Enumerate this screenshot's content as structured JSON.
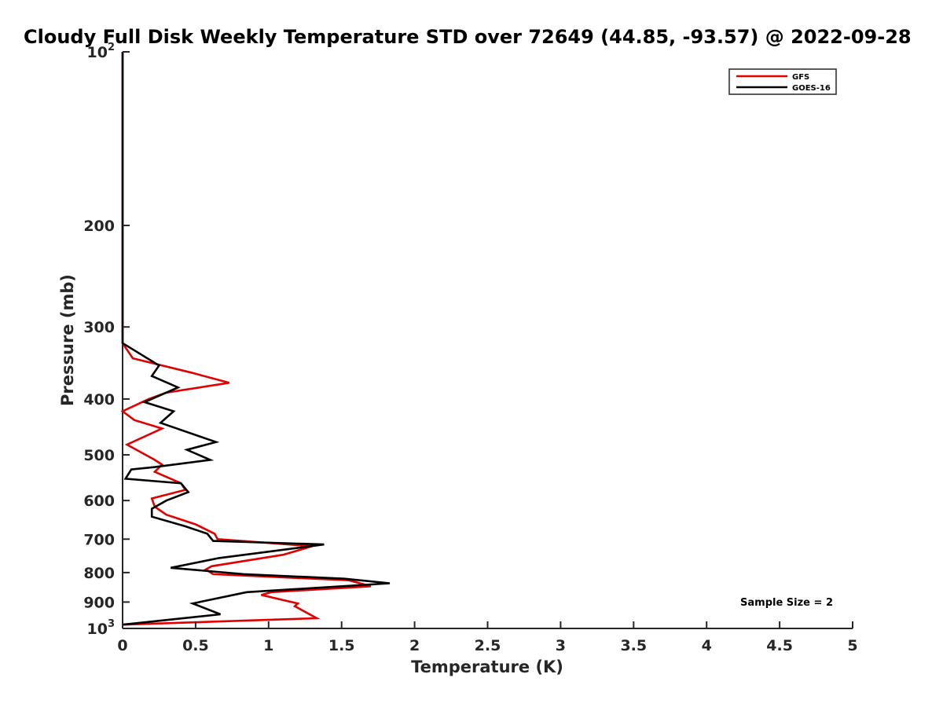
{
  "chart_data": {
    "type": "line",
    "title": "Cloudy Full Disk Weekly Temperature STD over 72649 (44.85, -93.57) @ 2022-09-28",
    "xlabel": "Temperature (K)",
    "ylabel": "Pressure (mb)",
    "xlim": [
      0,
      5
    ],
    "ylim": [
      100,
      1000
    ],
    "y_scale": "log",
    "y_reversed": true,
    "grid": false,
    "legend_position": "top-right",
    "x_ticks": [
      "0",
      "0.5",
      "1",
      "1.5",
      "2",
      "2.5",
      "3",
      "3.5",
      "4",
      "4.5",
      "5"
    ],
    "y_ticks": [
      {
        "value": 100,
        "label": "10",
        "sup": "2"
      },
      {
        "value": 200,
        "label": "200",
        "sup": ""
      },
      {
        "value": 300,
        "label": "300",
        "sup": ""
      },
      {
        "value": 400,
        "label": "400",
        "sup": ""
      },
      {
        "value": 500,
        "label": "500",
        "sup": ""
      },
      {
        "value": 600,
        "label": "600",
        "sup": ""
      },
      {
        "value": 700,
        "label": "700",
        "sup": ""
      },
      {
        "value": 800,
        "label": "800",
        "sup": ""
      },
      {
        "value": 900,
        "label": "900",
        "sup": ""
      },
      {
        "value": 1000,
        "label": "10",
        "sup": "3"
      }
    ],
    "annotation": "Sample Size = 2",
    "series": [
      {
        "name": "GFS",
        "color": "#e00000",
        "points": [
          [
            0,
            100
          ],
          [
            0,
            320
          ],
          [
            0.07,
            340
          ],
          [
            0.47,
            360
          ],
          [
            0.73,
            375
          ],
          [
            0.3,
            390
          ],
          [
            0.18,
            400
          ],
          [
            0.0,
            420
          ],
          [
            0.08,
            435
          ],
          [
            0.27,
            450
          ],
          [
            0.03,
            480
          ],
          [
            0.22,
            510
          ],
          [
            0.27,
            520
          ],
          [
            0.22,
            535
          ],
          [
            0.4,
            560
          ],
          [
            0.43,
            575
          ],
          [
            0.2,
            595
          ],
          [
            0.22,
            615
          ],
          [
            0.3,
            635
          ],
          [
            0.5,
            660
          ],
          [
            0.63,
            685
          ],
          [
            0.65,
            700
          ],
          [
            1.3,
            720
          ],
          [
            1.1,
            745
          ],
          [
            0.61,
            780
          ],
          [
            0.57,
            790
          ],
          [
            0.62,
            805
          ],
          [
            1.55,
            825
          ],
          [
            1.7,
            845
          ],
          [
            1.02,
            865
          ],
          [
            0.95,
            875
          ],
          [
            1.2,
            905
          ],
          [
            1.18,
            915
          ],
          [
            1.33,
            960
          ],
          [
            0,
            985
          ]
        ]
      },
      {
        "name": "GOES-16",
        "color": "#000000",
        "points": [
          [
            0,
            100
          ],
          [
            0,
            320
          ],
          [
            0.25,
            350
          ],
          [
            0.2,
            365
          ],
          [
            0.38,
            382
          ],
          [
            0.15,
            405
          ],
          [
            0.35,
            420
          ],
          [
            0.26,
            440
          ],
          [
            0.64,
            475
          ],
          [
            0.44,
            490
          ],
          [
            0.6,
            510
          ],
          [
            0.22,
            525
          ],
          [
            0.06,
            530
          ],
          [
            0.02,
            550
          ],
          [
            0.4,
            560
          ],
          [
            0.45,
            580
          ],
          [
            0.3,
            600
          ],
          [
            0.2,
            620
          ],
          [
            0.2,
            640
          ],
          [
            0.43,
            665
          ],
          [
            0.58,
            685
          ],
          [
            0.62,
            705
          ],
          [
            1.38,
            715
          ],
          [
            0.66,
            755
          ],
          [
            0.33,
            785
          ],
          [
            0.83,
            805
          ],
          [
            1.52,
            820
          ],
          [
            1.83,
            835
          ],
          [
            0.85,
            865
          ],
          [
            0.48,
            905
          ],
          [
            0.67,
            945
          ],
          [
            0,
            985
          ]
        ]
      }
    ]
  }
}
